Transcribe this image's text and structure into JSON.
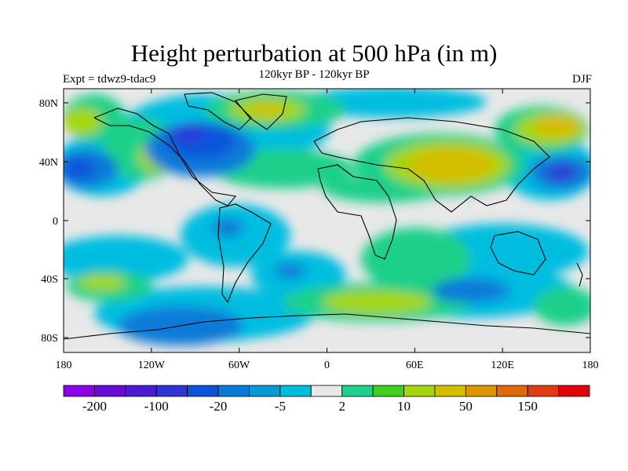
{
  "header": {
    "title": "Height perturbation at 500 hPa (in m)",
    "left": "Expt = tdwz9-tdac9",
    "center": "120kyr BP - 120kyr BP",
    "right": "DJF"
  },
  "axes": {
    "lat_ticks": [
      "80N",
      "40N",
      "0",
      "40S",
      "80S"
    ],
    "lon_ticks": [
      "180",
      "120W",
      "60W",
      "0",
      "60E",
      "120E",
      "180"
    ]
  },
  "colorbar": {
    "colors": [
      "#8b00e6",
      "#6a0ad6",
      "#4b1ad2",
      "#2f34d6",
      "#0a54da",
      "#0a7ad8",
      "#069bd6",
      "#00bde0",
      "#e8e8e8",
      "#1ed08a",
      "#3fcf1f",
      "#a4d60e",
      "#d4be00",
      "#df9400",
      "#e0680a",
      "#e03c14",
      "#e00008"
    ],
    "labels": [
      "-200",
      "-100",
      "-20",
      "-5",
      "2",
      "10",
      "50",
      "150"
    ]
  },
  "chart_data": {
    "type": "contour-map",
    "title": "Height perturbation at 500 hPa (in m)",
    "projection": "cylindrical equidistant",
    "lon_range": [
      -180,
      180
    ],
    "lat_range": [
      -90,
      90
    ],
    "contour_levels": [
      -200,
      -150,
      -100,
      -50,
      -20,
      -10,
      -5,
      -2,
      2,
      5,
      10,
      20,
      50,
      100,
      150,
      200
    ],
    "anomalies": [
      {
        "lon": -95,
        "lat": 47,
        "value": -20
      },
      {
        "lon": -165,
        "lat": 38,
        "value": -20
      },
      {
        "lon": 165,
        "lat": 36,
        "value": -20
      },
      {
        "lon": 85,
        "lat": 38,
        "value": 50
      },
      {
        "lon": 160,
        "lat": 63,
        "value": 50
      },
      {
        "lon": -50,
        "lat": 77,
        "value": 50
      },
      {
        "lon": -150,
        "lat": 67,
        "value": 10
      },
      {
        "lon": 95,
        "lat": -47,
        "value": -20
      },
      {
        "lon": -100,
        "lat": -62,
        "value": -20
      },
      {
        "lon": 35,
        "lat": -55,
        "value": 10
      },
      {
        "lon": 170,
        "lat": -52,
        "value": 10
      },
      {
        "lon": -150,
        "lat": -40,
        "value": 10
      }
    ]
  }
}
